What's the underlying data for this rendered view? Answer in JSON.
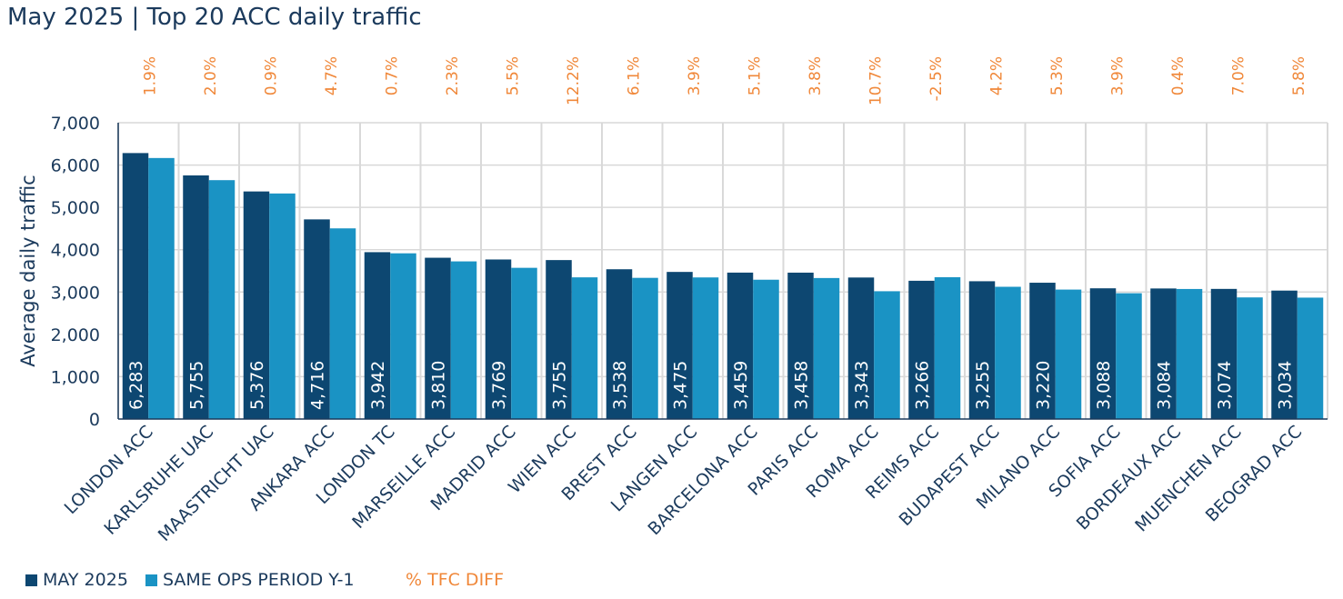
{
  "title": "May 2025 | Top 20 ACC daily traffic",
  "colors": {
    "current": "#0d4771",
    "previous": "#1a93c4",
    "diff": "#f0883a",
    "text": "#1b3a5c",
    "axis": "#1b3a5c",
    "grid": "#d9d9d9"
  },
  "legend": {
    "current": "MAY 2025",
    "previous": "SAME OPS PERIOD Y-1",
    "diff": "% TFC DIFF"
  },
  "chart_data": {
    "type": "bar",
    "title": "May 2025 | Top 20 ACC daily traffic",
    "xlabel": "",
    "ylabel": "Average daily traffic",
    "ylim": [
      0,
      7000
    ],
    "yticks": [
      0,
      1000,
      2000,
      3000,
      4000,
      5000,
      6000,
      7000
    ],
    "ytick_labels": [
      "0",
      "1,000",
      "2,000",
      "3,000",
      "4,000",
      "5,000",
      "6,000",
      "7,000"
    ],
    "grid": true,
    "legend_position": "bottom-left",
    "categories": [
      "LONDON ACC",
      "KARLSRUHE UAC",
      "MAASTRICHT UAC",
      "ANKARA ACC",
      "LONDON TC",
      "MARSEILLE ACC",
      "MADRID ACC",
      "WIEN ACC",
      "BREST ACC",
      "LANGEN ACC",
      "BARCELONA ACC",
      "PARIS ACC",
      "ROMA ACC",
      "REIMS ACC",
      "BUDAPEST ACC",
      "MILANO ACC",
      "SOFIA ACC",
      "BORDEAUX ACC",
      "MUENCHEN ACC",
      "BEOGRAD ACC"
    ],
    "series": [
      {
        "name": "MAY 2025",
        "values": [
          6283,
          5755,
          5376,
          4716,
          3942,
          3810,
          3769,
          3755,
          3538,
          3475,
          3459,
          3458,
          3343,
          3266,
          3255,
          3220,
          3088,
          3084,
          3074,
          3034
        ],
        "value_labels": [
          "6,283",
          "5,755",
          "5,376",
          "4,716",
          "3,942",
          "3,810",
          "3,769",
          "3,755",
          "3,538",
          "3,475",
          "3,459",
          "3,458",
          "3,343",
          "3,266",
          "3,255",
          "3,220",
          "3,088",
          "3,084",
          "3,074",
          "3,034"
        ]
      },
      {
        "name": "SAME OPS PERIOD Y-1",
        "values": [
          6166,
          5643,
          5328,
          4504,
          3915,
          3724,
          3572,
          3347,
          3335,
          3345,
          3291,
          3331,
          3019,
          3350,
          3124,
          3058,
          2972,
          3072,
          2873,
          2868
        ]
      }
    ],
    "pct_diff": {
      "name": "% TFC DIFF",
      "labels": [
        "1.9%",
        "2.0%",
        "0.9%",
        "4.7%",
        "0.7%",
        "2.3%",
        "5.5%",
        "12.2%",
        "6.1%",
        "3.9%",
        "5.1%",
        "3.8%",
        "10.7%",
        "-2.5%",
        "4.2%",
        "5.3%",
        "3.9%",
        "0.4%",
        "7.0%",
        "5.8%"
      ]
    }
  }
}
